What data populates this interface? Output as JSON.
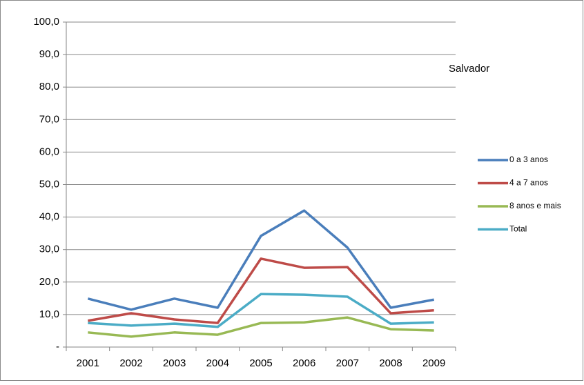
{
  "chart_data": {
    "type": "line",
    "annotation": "Salvador",
    "categories": [
      "2001",
      "2002",
      "2003",
      "2004",
      "2005",
      "2006",
      "2007",
      "2008",
      "2009"
    ],
    "series": [
      {
        "name": "0 a 3 anos",
        "color": "#4a7ebb",
        "values": [
          14.9,
          11.5,
          14.9,
          12.1,
          34.2,
          42.0,
          30.6,
          12.1,
          14.6
        ]
      },
      {
        "name": "4 a 7 anos",
        "color": "#be4b48",
        "values": [
          8.1,
          10.4,
          8.5,
          7.4,
          27.2,
          24.4,
          24.6,
          10.4,
          11.3
        ]
      },
      {
        "name": "8 anos e mais",
        "color": "#98b954",
        "values": [
          4.5,
          3.2,
          4.5,
          3.8,
          7.4,
          7.6,
          9.1,
          5.5,
          5.1
        ]
      },
      {
        "name": "Total",
        "color": "#4bacc6",
        "values": [
          7.4,
          6.6,
          7.2,
          6.2,
          16.3,
          16.1,
          15.5,
          7.2,
          7.6
        ]
      }
    ],
    "ylim": [
      0,
      100
    ],
    "yticks": [
      {
        "value": 0,
        "label": "-"
      },
      {
        "value": 10,
        "label": "10,0"
      },
      {
        "value": 20,
        "label": "20,0"
      },
      {
        "value": 30,
        "label": "30,0"
      },
      {
        "value": 40,
        "label": "40,0"
      },
      {
        "value": 50,
        "label": "50,0"
      },
      {
        "value": 60,
        "label": "60,0"
      },
      {
        "value": 70,
        "label": "70,0"
      },
      {
        "value": 80,
        "label": "80,0"
      },
      {
        "value": 90,
        "label": "90,0"
      },
      {
        "value": 100,
        "label": "100,0"
      }
    ],
    "grid": true,
    "legend": "right"
  }
}
